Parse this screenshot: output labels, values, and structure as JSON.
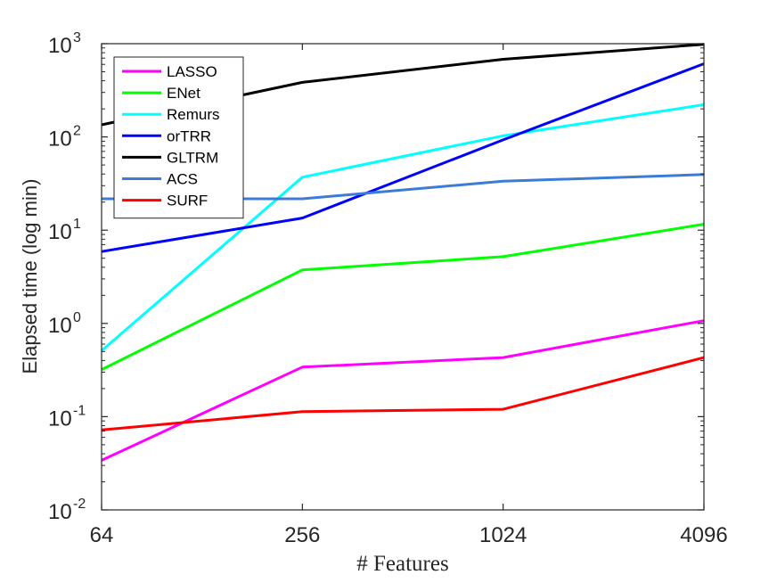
{
  "chart_data": {
    "type": "line",
    "xlabel": "# Features",
    "ylabel": "Elapsed time (log min)",
    "x_scale": "log2",
    "y_scale": "log10",
    "xlim": [
      64,
      4096
    ],
    "ylim": [
      0.01,
      1000
    ],
    "x": [
      64,
      256,
      1024,
      4096
    ],
    "x_tick_labels": [
      "64",
      "256",
      "1024",
      "4096"
    ],
    "y_ticks": [
      {
        "base": "10",
        "exp": "-2"
      },
      {
        "base": "10",
        "exp": "-1"
      },
      {
        "base": "10",
        "exp": "0"
      },
      {
        "base": "10",
        "exp": "1"
      },
      {
        "base": "10",
        "exp": "2"
      },
      {
        "base": "10",
        "exp": "3"
      }
    ],
    "grid": false,
    "legend_position": "top-left",
    "series": [
      {
        "name": "LASSO",
        "color": "#ff00ff",
        "values": [
          0.034,
          0.34,
          0.43,
          1.07
        ]
      },
      {
        "name": "ENet",
        "color": "#00ff00",
        "values": [
          0.32,
          3.75,
          5.2,
          11.6
        ]
      },
      {
        "name": "Remurs",
        "color": "#00ffff",
        "values": [
          0.51,
          37.0,
          103,
          222
        ]
      },
      {
        "name": "orTRR",
        "color": "#0000ff",
        "values": [
          5.9,
          13.5,
          93,
          610
        ]
      },
      {
        "name": "GLTRM",
        "color": "#000000",
        "values": [
          135,
          385,
          680,
          985
        ]
      },
      {
        "name": "ACS",
        "color": "#3d7bd9",
        "values": [
          21.7,
          21.7,
          33.5,
          39.5
        ]
      },
      {
        "name": "SURF",
        "color": "#ff0000",
        "values": [
          0.072,
          0.113,
          0.12,
          0.43
        ]
      }
    ]
  }
}
